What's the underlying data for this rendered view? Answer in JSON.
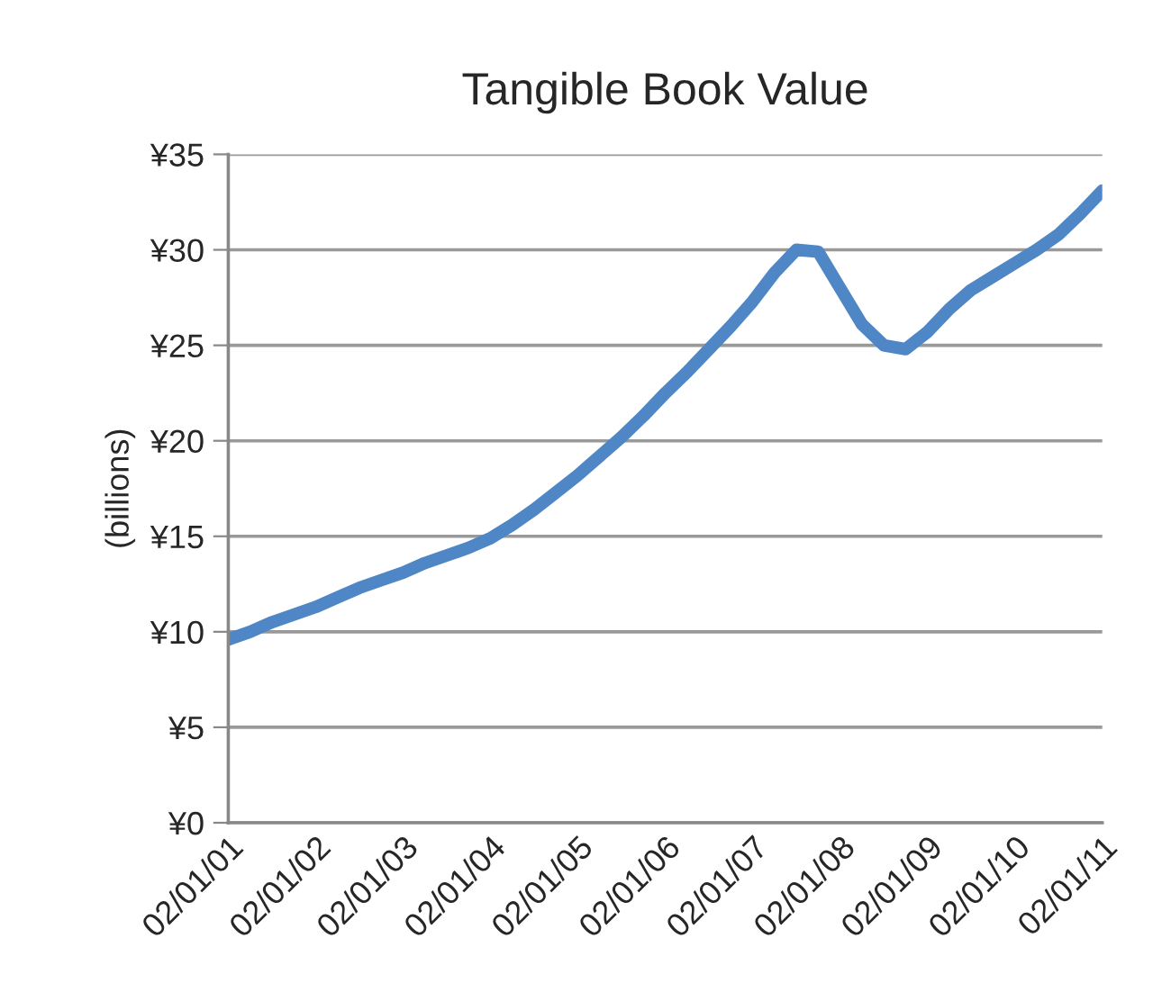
{
  "chart_data": {
    "type": "line",
    "title": "Tangible Book Value",
    "ylabel": "(billions)",
    "categories": [
      "02/01/01",
      null,
      null,
      null,
      "02/01/02",
      null,
      null,
      null,
      "02/01/03",
      null,
      null,
      null,
      "02/01/04",
      null,
      null,
      null,
      "02/01/05",
      null,
      null,
      null,
      "02/01/06",
      null,
      null,
      null,
      "02/01/07",
      null,
      null,
      null,
      "02/01/08",
      null,
      null,
      null,
      "02/01/09",
      null,
      null,
      null,
      "02/01/10",
      null,
      null,
      null,
      "02/01/11"
    ],
    "series": [
      {
        "color": "#4f86c6",
        "values": [
          9.6,
          10.0,
          10.5,
          10.9,
          11.3,
          11.8,
          12.3,
          12.7,
          13.1,
          13.6,
          14.0,
          14.4,
          14.9,
          15.6,
          16.4,
          17.3,
          18.2,
          19.2,
          20.2,
          21.3,
          22.5,
          23.6,
          24.8,
          26.0,
          27.3,
          28.8,
          30.0,
          29.9,
          28.0,
          26.1,
          25.0,
          24.8,
          25.7,
          26.9,
          27.9,
          28.6,
          29.3,
          30.0,
          30.8,
          31.9,
          33.1
        ]
      }
    ],
    "ylim": [
      0,
      35
    ],
    "yticks": [
      {
        "value": 0,
        "label": "¥0"
      },
      {
        "value": 5,
        "label": "¥5"
      },
      {
        "value": 10,
        "label": "¥10"
      },
      {
        "value": 15,
        "label": "¥15"
      },
      {
        "value": 20,
        "label": "¥20"
      },
      {
        "value": 25,
        "label": "¥25"
      },
      {
        "value": 30,
        "label": "¥30"
      },
      {
        "value": 35,
        "label": "¥35"
      }
    ],
    "grid": "y",
    "marker": "none",
    "line_style": "solid"
  }
}
